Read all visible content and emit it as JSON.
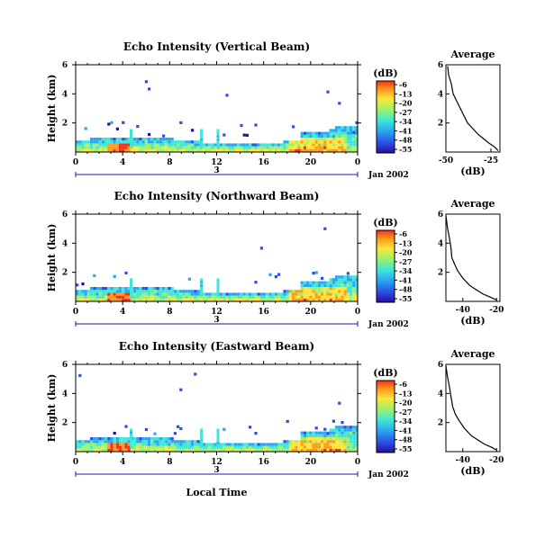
{
  "chart_data": [
    {
      "type": "heatmap",
      "title": "Echo Intensity (Vertical Beam)",
      "ylabel": "Height (km)",
      "xlim": [
        0,
        24
      ],
      "ylim": [
        0,
        6
      ],
      "x_ticks": [
        "0",
        "4",
        "8",
        "12",
        "16",
        "20",
        "0"
      ],
      "y_ticks": [
        "2",
        "4",
        "6"
      ],
      "date_tick_label": "3",
      "date_label": "Jan 2002",
      "colorbar": {
        "unit": "(dB)",
        "ticks": [
          "-6",
          "-13",
          "-20",
          "-27",
          "-34",
          "-41",
          "-48",
          "-55"
        ]
      },
      "average_profile": {
        "title": "Average",
        "xlabel": "(dB)",
        "x_ticks": [
          "-50",
          "-25"
        ],
        "y_ticks": [
          "2",
          "4",
          "6"
        ],
        "xlim": [
          -50,
          -20
        ],
        "ylim": [
          0,
          6
        ],
        "x": [
          -49,
          -48.5,
          -47,
          -46,
          -44,
          -42,
          -40,
          -38,
          -35,
          -32,
          -29,
          -26,
          -23,
          -21
        ],
        "y": [
          5.9,
          5.3,
          4.7,
          4.0,
          3.5,
          3.0,
          2.5,
          2.0,
          1.6,
          1.2,
          0.9,
          0.6,
          0.35,
          0.1
        ]
      }
    },
    {
      "type": "heatmap",
      "title": "Echo Intensity (Northward Beam)",
      "ylabel": "Height (km)",
      "xlim": [
        0,
        24
      ],
      "ylim": [
        0,
        6
      ],
      "x_ticks": [
        "0",
        "4",
        "8",
        "12",
        "16",
        "20",
        "0"
      ],
      "y_ticks": [
        "2",
        "4",
        "6"
      ],
      "date_tick_label": "3",
      "date_label": "Jan 2002",
      "colorbar": {
        "unit": "(dB)",
        "ticks": [
          "-6",
          "-13",
          "-20",
          "-27",
          "-34",
          "-41",
          "-48",
          "-55"
        ]
      },
      "average_profile": {
        "title": "Average",
        "xlabel": "(dB)",
        "x_ticks": [
          "-40",
          "-20"
        ],
        "y_ticks": [
          "2",
          "4",
          "6"
        ],
        "xlim": [
          -50,
          -18
        ],
        "ylim": [
          0,
          6
        ],
        "x": [
          -50,
          -49,
          -48,
          -47,
          -46.5,
          -45,
          -43,
          -40,
          -36,
          -32,
          -28,
          -24,
          -20
        ],
        "y": [
          5.9,
          5.0,
          4.4,
          3.7,
          3.0,
          2.6,
          2.1,
          1.6,
          1.1,
          0.8,
          0.5,
          0.3,
          0.1
        ]
      }
    },
    {
      "type": "heatmap",
      "title": "Echo Intensity (Eastward Beam)",
      "ylabel": "Height (km)",
      "xlim": [
        0,
        24
      ],
      "ylim": [
        0,
        6
      ],
      "x_ticks": [
        "0",
        "4",
        "8",
        "12",
        "16",
        "20",
        "0"
      ],
      "y_ticks": [
        "2",
        "4",
        "6"
      ],
      "date_tick_label": "3",
      "date_label": "Jan 2002",
      "xlabel": "Local Time",
      "colorbar": {
        "unit": "(dB)",
        "ticks": [
          "-6",
          "-13",
          "-20",
          "-27",
          "-34",
          "-41",
          "-48",
          "-55"
        ]
      },
      "average_profile": {
        "title": "Average",
        "xlabel": "(dB)",
        "x_ticks": [
          "-40",
          "-20"
        ],
        "y_ticks": [
          "2",
          "4",
          "6"
        ],
        "xlim": [
          -50,
          -18
        ],
        "ylim": [
          0,
          6
        ],
        "x": [
          -50,
          -49,
          -48,
          -47,
          -46,
          -44.5,
          -42,
          -39,
          -35,
          -31,
          -27,
          -23,
          -20
        ],
        "y": [
          5.9,
          5.1,
          4.5,
          3.8,
          3.1,
          2.6,
          2.1,
          1.6,
          1.1,
          0.8,
          0.5,
          0.3,
          0.1
        ]
      }
    }
  ],
  "colors": {
    "scale": [
      "#2a0c9e",
      "#2b4fe6",
      "#2aa6f0",
      "#3fe6d8",
      "#9bf26b",
      "#ffe53a",
      "#ff9a1c",
      "#f2301a"
    ],
    "axis": "#000000",
    "date_axis": "#1a1ab0"
  }
}
